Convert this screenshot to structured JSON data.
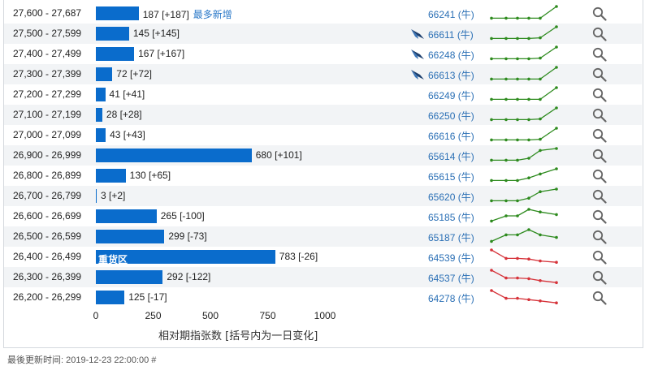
{
  "chart_data": {
    "type": "bar",
    "orientation": "horizontal",
    "xlabel": "相对期指张数 [括号内为一日变化]",
    "xlim": [
      0,
      1000
    ],
    "xticks": [
      "0",
      "250",
      "500",
      "750",
      "1000"
    ],
    "categories": [
      "27,600 - 27,687",
      "27,500 - 27,599",
      "27,400 - 27,499",
      "27,300 - 27,399",
      "27,200 - 27,299",
      "27,100 - 27,199",
      "27,000 - 27,099",
      "26,900 - 26,999",
      "26,800 - 26,899",
      "26,700 - 26,799",
      "26,600 - 26,699",
      "26,500 - 26,599",
      "26,400 - 26,499",
      "26,300 - 26,399",
      "26,200 - 26,299"
    ],
    "values": [
      187,
      145,
      167,
      72,
      41,
      28,
      43,
      680,
      130,
      3,
      265,
      299,
      783,
      292,
      125
    ],
    "changes": [
      "+187",
      "+145",
      "+167",
      "+72",
      "+41",
      "+28",
      "+43",
      "+101",
      "+65",
      "+2",
      "-100",
      "-73",
      "-26",
      "-122",
      "-17"
    ],
    "labels": [
      "187 [+187]",
      "145 [+145]",
      "167 [+167]",
      "72 [+72]",
      "41 [+41]",
      "28 [+28]",
      "43 [+43]",
      "680 [+101]",
      "130 [+65]",
      "3 [+2]",
      "265 [-100]",
      "299 [-73]",
      "783 [-26]",
      "292 [-122]",
      "125 [-17]"
    ],
    "annotations": [
      {
        "row": 0,
        "text": "最多新增"
      },
      {
        "row": 12,
        "text": "重货区"
      }
    ],
    "bar_color": "#0a6ccc",
    "grid": false
  },
  "rows": [
    {
      "warrant": "66241 (牛)",
      "icon": false,
      "spark": [
        0.1,
        0.1,
        0.1,
        0.1,
        0.1,
        1.0
      ],
      "trend": "up"
    },
    {
      "warrant": "66611 (牛)",
      "icon": true,
      "spark": [
        0.1,
        0.1,
        0.1,
        0.1,
        0.15,
        1.0
      ],
      "trend": "up"
    },
    {
      "warrant": "66248 (牛)",
      "icon": true,
      "spark": [
        0.1,
        0.1,
        0.1,
        0.1,
        0.15,
        1.0
      ],
      "trend": "up"
    },
    {
      "warrant": "66613 (牛)",
      "icon": true,
      "spark": [
        0.1,
        0.1,
        0.1,
        0.1,
        0.1,
        1.0
      ],
      "trend": "up"
    },
    {
      "warrant": "66249 (牛)",
      "icon": false,
      "spark": [
        0.1,
        0.1,
        0.1,
        0.1,
        0.1,
        1.0
      ],
      "trend": "up"
    },
    {
      "warrant": "66250 (牛)",
      "icon": false,
      "spark": [
        0.1,
        0.1,
        0.1,
        0.1,
        0.15,
        1.0
      ],
      "trend": "up"
    },
    {
      "warrant": "66616 (牛)",
      "icon": false,
      "spark": [
        0.1,
        0.1,
        0.1,
        0.1,
        0.15,
        1.0
      ],
      "trend": "up"
    },
    {
      "warrant": "65614 (牛)",
      "icon": false,
      "spark": [
        0.1,
        0.1,
        0.1,
        0.25,
        0.85,
        1.0
      ],
      "trend": "up"
    },
    {
      "warrant": "65615 (牛)",
      "icon": false,
      "spark": [
        0.1,
        0.1,
        0.1,
        0.3,
        0.6,
        1.0
      ],
      "trend": "up"
    },
    {
      "warrant": "65620 (牛)",
      "icon": false,
      "spark": [
        0.1,
        0.1,
        0.1,
        0.3,
        0.8,
        1.0
      ],
      "trend": "up"
    },
    {
      "warrant": "65185 (牛)",
      "icon": false,
      "spark": [
        0.1,
        0.5,
        0.5,
        1.0,
        0.8,
        0.6
      ],
      "trend": "up"
    },
    {
      "warrant": "65187 (牛)",
      "icon": false,
      "spark": [
        0.1,
        0.6,
        0.6,
        1.0,
        0.6,
        0.4
      ],
      "trend": "up"
    },
    {
      "warrant": "64539 (牛)",
      "icon": false,
      "spark": [
        1.0,
        0.35,
        0.35,
        0.3,
        0.15,
        0.05
      ],
      "trend": "down"
    },
    {
      "warrant": "64537 (牛)",
      "icon": false,
      "spark": [
        1.0,
        0.4,
        0.4,
        0.35,
        0.2,
        0.05
      ],
      "trend": "down"
    },
    {
      "warrant": "64278 (牛)",
      "icon": false,
      "spark": [
        1.0,
        0.4,
        0.4,
        0.3,
        0.2,
        0.05
      ],
      "trend": "down"
    }
  ],
  "colors": {
    "up": "#2e8b1f",
    "down": "#d6333a",
    "link": "#2a6fb5"
  },
  "footer": "最後更新时间: 2019-12-23 22:00:00 #"
}
